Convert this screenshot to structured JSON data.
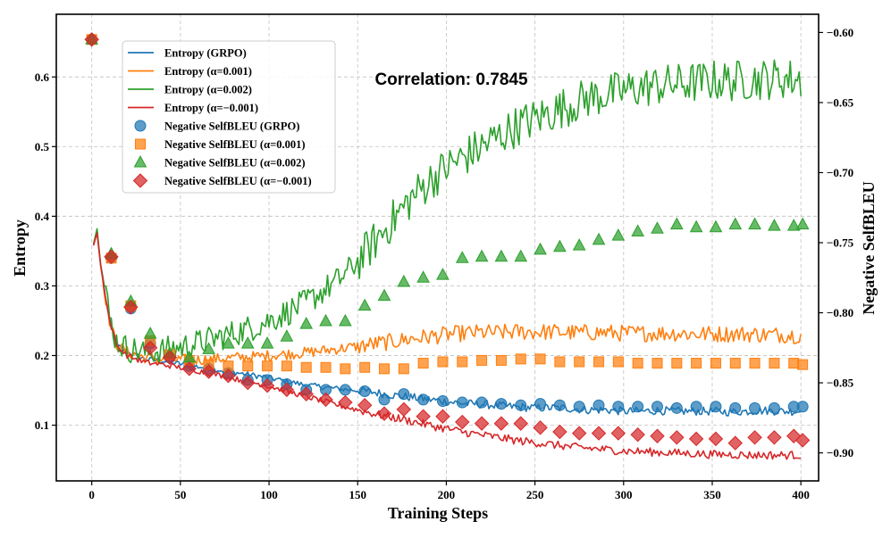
{
  "chart_data": {
    "type": "line",
    "annotation": "Correlation: 0.7845",
    "xlabel": "Training Steps",
    "ylabel_left": "Entropy",
    "ylabel_right": "Negative SelfBLEU",
    "xlim": [
      -20,
      410
    ],
    "ylim_left": [
      0.02,
      0.69
    ],
    "ylim_right": [
      -0.92,
      -0.587
    ],
    "x_ticks": [
      0,
      50,
      100,
      150,
      200,
      250,
      300,
      350,
      400
    ],
    "y_ticks_left": [
      0.1,
      0.2,
      0.3,
      0.4,
      0.5,
      0.6
    ],
    "y_ticks_left_labels": [
      "0.1",
      "0.2",
      "0.3",
      "0.4",
      "0.5",
      "0.6"
    ],
    "y_ticks_right": [
      -0.9,
      -0.85,
      -0.8,
      -0.75,
      -0.7,
      -0.65,
      -0.6
    ],
    "y_ticks_right_labels": [
      "−0.90",
      "−0.85",
      "−0.80",
      "−0.75",
      "−0.70",
      "−0.65",
      "−0.60"
    ],
    "grid": true,
    "legend_position": "upper-left",
    "line_series": [
      {
        "name": "Entropy (GRPO)",
        "color": "#1f77b4",
        "x": [
          1,
          3,
          5,
          8,
          10,
          14,
          20,
          30,
          40,
          50,
          60,
          70,
          80,
          90,
          100,
          110,
          120,
          130,
          140,
          150,
          160,
          170,
          180,
          190,
          200,
          210,
          220,
          230,
          240,
          250,
          260,
          270,
          280,
          290,
          300,
          310,
          320,
          330,
          340,
          350,
          360,
          370,
          380,
          390,
          400
        ],
        "y": [
          0.36,
          0.378,
          0.33,
          0.28,
          0.25,
          0.215,
          0.205,
          0.195,
          0.192,
          0.188,
          0.184,
          0.18,
          0.176,
          0.172,
          0.168,
          0.163,
          0.158,
          0.155,
          0.152,
          0.15,
          0.147,
          0.143,
          0.14,
          0.137,
          0.134,
          0.131,
          0.13,
          0.128,
          0.126,
          0.125,
          0.125,
          0.124,
          0.122,
          0.122,
          0.12,
          0.12,
          0.121,
          0.12,
          0.12,
          0.12,
          0.119,
          0.12,
          0.121,
          0.12,
          0.12
        ],
        "noise": 0.004
      },
      {
        "name": "Entropy (α=0.001)",
        "color": "#ff7f0e",
        "x": [
          1,
          3,
          5,
          8,
          10,
          14,
          20,
          30,
          40,
          50,
          60,
          70,
          80,
          90,
          100,
          110,
          120,
          130,
          140,
          150,
          160,
          170,
          180,
          190,
          200,
          210,
          220,
          230,
          240,
          250,
          260,
          270,
          280,
          290,
          300,
          310,
          320,
          330,
          340,
          350,
          360,
          370,
          380,
          390,
          400
        ],
        "y": [
          0.36,
          0.38,
          0.33,
          0.28,
          0.25,
          0.215,
          0.205,
          0.197,
          0.195,
          0.194,
          0.194,
          0.195,
          0.197,
          0.198,
          0.2,
          0.202,
          0.204,
          0.207,
          0.21,
          0.213,
          0.217,
          0.22,
          0.224,
          0.227,
          0.23,
          0.232,
          0.233,
          0.233,
          0.234,
          0.234,
          0.234,
          0.233,
          0.233,
          0.233,
          0.232,
          0.232,
          0.232,
          0.232,
          0.231,
          0.231,
          0.231,
          0.231,
          0.23,
          0.23,
          0.229
        ],
        "noise": 0.008
      },
      {
        "name": "Entropy (α=0.002)",
        "color": "#2ca02c",
        "x": [
          1,
          3,
          5,
          8,
          10,
          14,
          20,
          30,
          40,
          50,
          60,
          70,
          80,
          90,
          100,
          110,
          120,
          130,
          140,
          150,
          160,
          170,
          180,
          190,
          200,
          210,
          220,
          230,
          240,
          250,
          260,
          270,
          280,
          290,
          300,
          310,
          320,
          330,
          340,
          350,
          360,
          370,
          380,
          390,
          400
        ],
        "y": [
          0.36,
          0.382,
          0.33,
          0.29,
          0.255,
          0.22,
          0.21,
          0.205,
          0.207,
          0.212,
          0.218,
          0.225,
          0.232,
          0.24,
          0.25,
          0.262,
          0.275,
          0.292,
          0.31,
          0.335,
          0.365,
          0.395,
          0.425,
          0.45,
          0.47,
          0.485,
          0.5,
          0.515,
          0.53,
          0.54,
          0.55,
          0.56,
          0.57,
          0.575,
          0.58,
          0.585,
          0.588,
          0.59,
          0.592,
          0.595,
          0.594,
          0.596,
          0.597,
          0.598,
          0.596
        ],
        "noise": 0.02
      },
      {
        "name": "Entropy (α=−0.001)",
        "color": "#d62728",
        "x": [
          1,
          3,
          5,
          8,
          10,
          14,
          20,
          30,
          40,
          50,
          60,
          70,
          80,
          90,
          100,
          110,
          120,
          130,
          140,
          150,
          160,
          170,
          180,
          190,
          200,
          210,
          220,
          230,
          240,
          250,
          260,
          270,
          280,
          290,
          300,
          310,
          320,
          330,
          340,
          350,
          360,
          370,
          380,
          390,
          400
        ],
        "y": [
          0.358,
          0.376,
          0.33,
          0.28,
          0.25,
          0.215,
          0.2,
          0.19,
          0.187,
          0.183,
          0.178,
          0.173,
          0.167,
          0.162,
          0.156,
          0.149,
          0.142,
          0.135,
          0.128,
          0.122,
          0.116,
          0.111,
          0.106,
          0.1,
          0.095,
          0.09,
          0.086,
          0.082,
          0.078,
          0.075,
          0.072,
          0.069,
          0.067,
          0.065,
          0.063,
          0.062,
          0.061,
          0.06,
          0.059,
          0.058,
          0.058,
          0.057,
          0.057,
          0.057,
          0.057
        ],
        "noise": 0.004
      }
    ],
    "scatter_series": [
      {
        "name": "Negative SelfBLEU (GRPO)",
        "color": "#1f77b4",
        "marker": "circle",
        "x": [
          0,
          11,
          22,
          33,
          44,
          55,
          66,
          77,
          88,
          99,
          110,
          121,
          132,
          143,
          154,
          165,
          176,
          187,
          198,
          209,
          220,
          231,
          242,
          253,
          264,
          275,
          286,
          297,
          308,
          319,
          330,
          341,
          352,
          363,
          374,
          385,
          396,
          401
        ],
        "y": [
          -0.605,
          -0.761,
          -0.797,
          -0.822,
          -0.832,
          -0.838,
          -0.84,
          -0.843,
          -0.848,
          -0.848,
          -0.851,
          -0.855,
          -0.855,
          -0.855,
          -0.856,
          -0.862,
          -0.858,
          -0.862,
          -0.863,
          -0.864,
          -0.864,
          -0.865,
          -0.866,
          -0.865,
          -0.866,
          -0.867,
          -0.866,
          -0.867,
          -0.867,
          -0.867,
          -0.868,
          -0.867,
          -0.867,
          -0.868,
          -0.868,
          -0.868,
          -0.867,
          -0.867
        ]
      },
      {
        "name": "Negative SelfBLEU (α=0.001)",
        "color": "#ff7f0e",
        "marker": "square",
        "x": [
          0,
          11,
          22,
          33,
          44,
          55,
          66,
          77,
          88,
          99,
          110,
          121,
          132,
          143,
          154,
          165,
          176,
          187,
          198,
          209,
          220,
          231,
          242,
          253,
          264,
          275,
          286,
          297,
          308,
          319,
          330,
          341,
          352,
          363,
          374,
          385,
          396,
          401
        ],
        "y": [
          -0.605,
          -0.761,
          -0.795,
          -0.82,
          -0.83,
          -0.834,
          -0.837,
          -0.838,
          -0.838,
          -0.838,
          -0.838,
          -0.839,
          -0.839,
          -0.84,
          -0.839,
          -0.84,
          -0.84,
          -0.836,
          -0.835,
          -0.835,
          -0.834,
          -0.834,
          -0.833,
          -0.833,
          -0.835,
          -0.835,
          -0.835,
          -0.835,
          -0.836,
          -0.836,
          -0.836,
          -0.836,
          -0.836,
          -0.836,
          -0.836,
          -0.836,
          -0.836,
          -0.837
        ]
      },
      {
        "name": "Negative SelfBLEU (α=0.002)",
        "color": "#2ca02c",
        "marker": "triangle",
        "x": [
          0,
          11,
          22,
          33,
          44,
          55,
          66,
          77,
          88,
          99,
          110,
          121,
          132,
          143,
          154,
          165,
          176,
          187,
          198,
          209,
          220,
          231,
          242,
          253,
          264,
          275,
          286,
          297,
          308,
          319,
          330,
          341,
          352,
          363,
          374,
          385,
          396,
          401
        ],
        "y": [
          -0.605,
          -0.758,
          -0.792,
          -0.815,
          -0.829,
          -0.832,
          -0.826,
          -0.822,
          -0.822,
          -0.822,
          -0.817,
          -0.808,
          -0.806,
          -0.806,
          -0.795,
          -0.788,
          -0.778,
          -0.775,
          -0.773,
          -0.761,
          -0.76,
          -0.76,
          -0.76,
          -0.755,
          -0.753,
          -0.752,
          -0.748,
          -0.745,
          -0.742,
          -0.74,
          -0.737,
          -0.739,
          -0.739,
          -0.737,
          -0.737,
          -0.738,
          -0.738,
          -0.737
        ]
      },
      {
        "name": "Negative SelfBLEU (α=−0.001)",
        "color": "#d62728",
        "marker": "diamond",
        "x": [
          0,
          11,
          22,
          33,
          44,
          55,
          66,
          77,
          88,
          99,
          110,
          121,
          132,
          143,
          154,
          165,
          176,
          187,
          198,
          209,
          220,
          231,
          242,
          253,
          264,
          275,
          286,
          297,
          308,
          319,
          330,
          341,
          352,
          363,
          374,
          385,
          396,
          401
        ],
        "y": [
          -0.605,
          -0.76,
          -0.796,
          -0.825,
          -0.832,
          -0.84,
          -0.842,
          -0.845,
          -0.85,
          -0.852,
          -0.855,
          -0.858,
          -0.862,
          -0.864,
          -0.866,
          -0.872,
          -0.869,
          -0.874,
          -0.874,
          -0.878,
          -0.879,
          -0.879,
          -0.879,
          -0.882,
          -0.885,
          -0.886,
          -0.886,
          -0.886,
          -0.887,
          -0.888,
          -0.889,
          -0.89,
          -0.89,
          -0.893,
          -0.889,
          -0.889,
          -0.888,
          -0.891
        ]
      }
    ]
  }
}
